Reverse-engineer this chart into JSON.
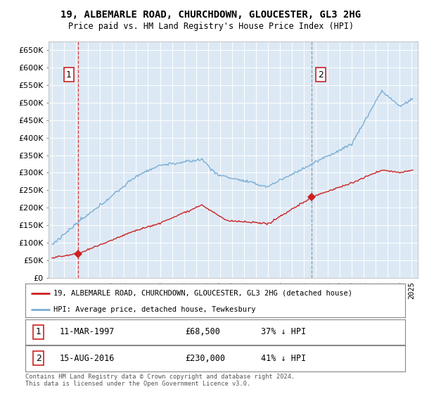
{
  "title": "19, ALBEMARLE ROAD, CHURCHDOWN, GLOUCESTER, GL3 2HG",
  "subtitle": "Price paid vs. HM Land Registry's House Price Index (HPI)",
  "plot_bg_color": "#dce9f5",
  "grid_color": "#c0cfe0",
  "hpi_color": "#7aadd4",
  "price_color": "#cc2222",
  "dashed_color_1": "#cc2222",
  "dashed_color_2": "#888888",
  "ylim": [
    0,
    675000
  ],
  "yticks": [
    0,
    50000,
    100000,
    150000,
    200000,
    250000,
    300000,
    350000,
    400000,
    450000,
    500000,
    550000,
    600000,
    650000
  ],
  "legend_property": "19, ALBEMARLE ROAD, CHURCHDOWN, GLOUCESTER, GL3 2HG (detached house)",
  "legend_hpi": "HPI: Average price, detached house, Tewkesbury",
  "footer": "Contains HM Land Registry data © Crown copyright and database right 2024.\nThis data is licensed under the Open Government Licence v3.0.",
  "xlim_start": 1994.7,
  "xlim_end": 2025.5,
  "p1_x": 1997.19,
  "p1_y": 68500,
  "p2_x": 2016.62,
  "p2_y": 230000,
  "label1_date": "11-MAR-1997",
  "label1_price": "£68,500",
  "label1_hpi": "37% ↓ HPI",
  "label2_date": "15-AUG-2016",
  "label2_price": "£230,000",
  "label2_hpi": "41% ↓ HPI"
}
